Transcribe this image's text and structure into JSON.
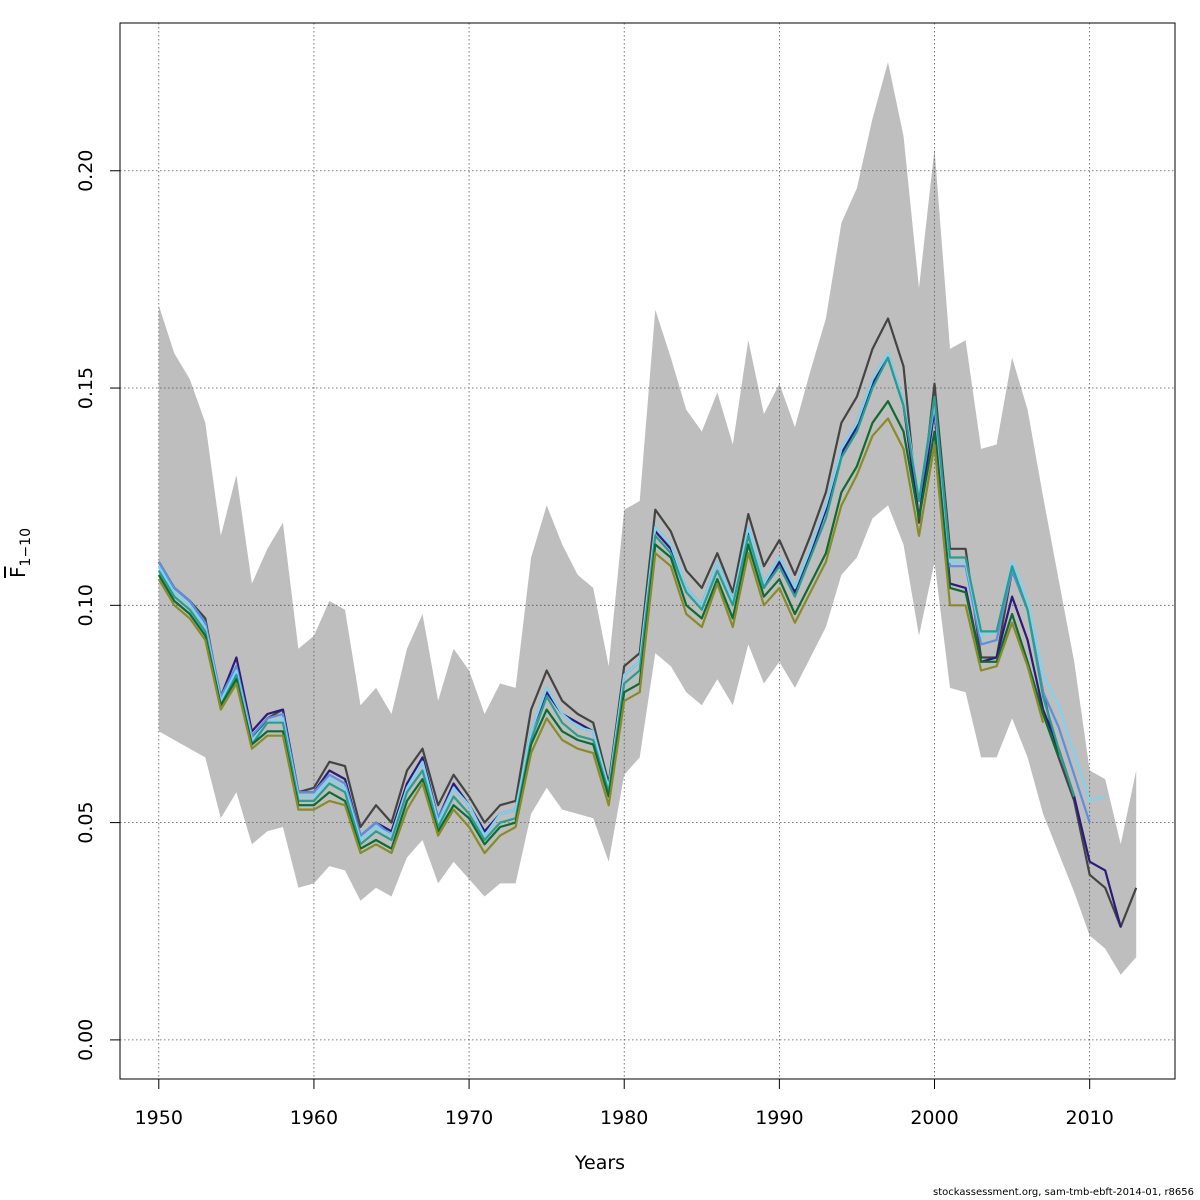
{
  "chart_data": {
    "type": "line",
    "xlabel": "Years",
    "ylabel_symbol": "F",
    "ylabel_subscript": "1−10",
    "xlim": [
      1947.5,
      2015.5
    ],
    "ylim": [
      -0.009,
      0.234
    ],
    "x_ticks": [
      1950,
      1960,
      1970,
      1980,
      1990,
      2000,
      2010
    ],
    "y_ticks": [
      0.0,
      0.05,
      0.1,
      0.15,
      0.2
    ],
    "y_tick_labels": [
      "0.00",
      "0.05",
      "0.10",
      "0.15",
      "0.20"
    ],
    "grid": true,
    "band": {
      "x": [
        1950,
        1951,
        1952,
        1953,
        1954,
        1955,
        1956,
        1957,
        1958,
        1959,
        1960,
        1961,
        1962,
        1963,
        1964,
        1965,
        1966,
        1967,
        1968,
        1969,
        1970,
        1971,
        1972,
        1973,
        1974,
        1975,
        1976,
        1977,
        1978,
        1979,
        1980,
        1981,
        1982,
        1983,
        1984,
        1985,
        1986,
        1987,
        1988,
        1989,
        1990,
        1991,
        1992,
        1993,
        1994,
        1995,
        1996,
        1997,
        1998,
        1999,
        2000,
        2001,
        2002,
        2003,
        2004,
        2005,
        2006,
        2007,
        2008,
        2009,
        2010,
        2011,
        2012,
        2013
      ],
      "upper": [
        0.169,
        0.158,
        0.152,
        0.142,
        0.116,
        0.13,
        0.105,
        0.113,
        0.119,
        0.09,
        0.093,
        0.101,
        0.099,
        0.077,
        0.081,
        0.075,
        0.09,
        0.098,
        0.078,
        0.09,
        0.085,
        0.075,
        0.082,
        0.081,
        0.111,
        0.123,
        0.114,
        0.107,
        0.104,
        0.086,
        0.122,
        0.124,
        0.168,
        0.157,
        0.145,
        0.14,
        0.149,
        0.137,
        0.161,
        0.144,
        0.151,
        0.141,
        0.154,
        0.166,
        0.188,
        0.196,
        0.212,
        0.225,
        0.208,
        0.173,
        0.205,
        0.159,
        0.161,
        0.136,
        0.137,
        0.157,
        0.145,
        0.125,
        0.106,
        0.087,
        0.062,
        0.06,
        0.045,
        0.062
      ],
      "lower": [
        0.071,
        0.069,
        0.067,
        0.065,
        0.051,
        0.057,
        0.045,
        0.048,
        0.049,
        0.035,
        0.036,
        0.04,
        0.039,
        0.032,
        0.035,
        0.033,
        0.042,
        0.046,
        0.036,
        0.041,
        0.037,
        0.033,
        0.036,
        0.036,
        0.052,
        0.058,
        0.053,
        0.052,
        0.051,
        0.041,
        0.061,
        0.065,
        0.089,
        0.086,
        0.08,
        0.077,
        0.083,
        0.077,
        0.091,
        0.082,
        0.087,
        0.081,
        0.088,
        0.095,
        0.107,
        0.111,
        0.12,
        0.123,
        0.114,
        0.093,
        0.11,
        0.081,
        0.08,
        0.065,
        0.065,
        0.074,
        0.065,
        0.052,
        0.043,
        0.034,
        0.024,
        0.021,
        0.015,
        0.019
      ]
    },
    "series": [
      {
        "color": "#444444",
        "x0": 1950,
        "values": [
          0.11,
          0.104,
          0.101,
          0.097,
          0.078,
          0.086,
          0.069,
          0.074,
          0.076,
          0.057,
          0.058,
          0.064,
          0.063,
          0.049,
          0.054,
          0.05,
          0.062,
          0.067,
          0.054,
          0.061,
          0.056,
          0.05,
          0.054,
          0.055,
          0.076,
          0.085,
          0.078,
          0.075,
          0.073,
          0.059,
          0.086,
          0.089,
          0.122,
          0.117,
          0.108,
          0.104,
          0.112,
          0.103,
          0.121,
          0.109,
          0.115,
          0.107,
          0.116,
          0.126,
          0.142,
          0.148,
          0.159,
          0.166,
          0.155,
          0.119,
          0.151,
          0.113,
          0.113,
          0.088,
          0.088,
          0.108,
          0.099,
          0.08,
          0.065,
          0.055,
          0.038,
          0.035,
          0.026,
          0.035
        ]
      },
      {
        "color": "#2d1a7a",
        "x0": 1950,
        "values": [
          0.11,
          0.104,
          0.101,
          0.096,
          0.079,
          0.088,
          0.071,
          0.075,
          0.076,
          0.057,
          0.057,
          0.062,
          0.06,
          0.047,
          0.05,
          0.048,
          0.059,
          0.065,
          0.051,
          0.059,
          0.054,
          0.048,
          0.052,
          0.053,
          0.071,
          0.08,
          0.075,
          0.073,
          0.071,
          0.058,
          0.084,
          0.087,
          0.117,
          0.113,
          0.104,
          0.1,
          0.11,
          0.101,
          0.117,
          0.104,
          0.11,
          0.103,
          0.112,
          0.122,
          0.135,
          0.141,
          0.151,
          0.157,
          0.146,
          0.12,
          0.145,
          0.105,
          0.104,
          0.087,
          0.088,
          0.102,
          0.092,
          0.076,
          0.067,
          0.056,
          0.041,
          0.039,
          0.026
        ]
      },
      {
        "color": "#5b8fe0",
        "x0": 1950,
        "values": [
          0.11,
          0.104,
          0.101,
          0.096,
          0.079,
          0.086,
          0.07,
          0.074,
          0.075,
          0.057,
          0.057,
          0.061,
          0.059,
          0.047,
          0.05,
          0.047,
          0.058,
          0.064,
          0.051,
          0.058,
          0.054,
          0.047,
          0.052,
          0.053,
          0.071,
          0.081,
          0.075,
          0.072,
          0.071,
          0.058,
          0.084,
          0.087,
          0.118,
          0.114,
          0.104,
          0.1,
          0.11,
          0.101,
          0.118,
          0.105,
          0.111,
          0.104,
          0.113,
          0.123,
          0.136,
          0.142,
          0.152,
          0.158,
          0.147,
          0.124,
          0.146,
          0.109,
          0.109,
          0.091,
          0.092,
          0.108,
          0.099,
          0.08,
          0.072,
          0.061,
          0.05
        ]
      },
      {
        "color": "#7fd3ee",
        "x0": 1950,
        "values": [
          0.109,
          0.103,
          0.1,
          0.095,
          0.078,
          0.085,
          0.069,
          0.073,
          0.074,
          0.056,
          0.056,
          0.06,
          0.058,
          0.046,
          0.049,
          0.047,
          0.058,
          0.064,
          0.05,
          0.058,
          0.054,
          0.047,
          0.052,
          0.053,
          0.071,
          0.081,
          0.075,
          0.072,
          0.071,
          0.058,
          0.084,
          0.087,
          0.118,
          0.114,
          0.104,
          0.1,
          0.11,
          0.101,
          0.118,
          0.105,
          0.111,
          0.104,
          0.113,
          0.123,
          0.136,
          0.142,
          0.152,
          0.158,
          0.147,
          0.125,
          0.147,
          0.11,
          0.11,
          0.093,
          0.094,
          0.11,
          0.101,
          0.084,
          0.077,
          0.066,
          0.055,
          0.056
        ]
      },
      {
        "color": "#2a9d8f",
        "x0": 1950,
        "values": [
          0.108,
          0.102,
          0.099,
          0.094,
          0.077,
          0.084,
          0.068,
          0.073,
          0.073,
          0.055,
          0.055,
          0.059,
          0.057,
          0.045,
          0.048,
          0.046,
          0.057,
          0.062,
          0.049,
          0.056,
          0.052,
          0.046,
          0.05,
          0.051,
          0.069,
          0.079,
          0.073,
          0.07,
          0.069,
          0.057,
          0.082,
          0.085,
          0.116,
          0.112,
          0.103,
          0.099,
          0.108,
          0.1,
          0.116,
          0.104,
          0.109,
          0.102,
          0.111,
          0.12,
          0.134,
          0.14,
          0.15,
          0.157,
          0.146,
          0.124,
          0.148,
          0.111,
          0.111,
          0.094,
          0.094,
          0.109,
          0.099,
          0.079,
          0.067,
          0.056
        ]
      },
      {
        "color": "#0f6b2f",
        "x0": 1950,
        "values": [
          0.107,
          0.101,
          0.098,
          0.093,
          0.077,
          0.083,
          0.068,
          0.071,
          0.071,
          0.054,
          0.054,
          0.057,
          0.055,
          0.044,
          0.046,
          0.044,
          0.055,
          0.06,
          0.048,
          0.054,
          0.051,
          0.045,
          0.049,
          0.05,
          0.068,
          0.076,
          0.071,
          0.069,
          0.068,
          0.056,
          0.08,
          0.082,
          0.114,
          0.111,
          0.1,
          0.097,
          0.106,
          0.097,
          0.114,
          0.102,
          0.106,
          0.098,
          0.105,
          0.112,
          0.126,
          0.132,
          0.142,
          0.147,
          0.14,
          0.12,
          0.14,
          0.104,
          0.103,
          0.087,
          0.087,
          0.098,
          0.087,
          0.075,
          0.065
        ]
      },
      {
        "color": "#8a8a2a",
        "x0": 1950,
        "values": [
          0.106,
          0.1,
          0.097,
          0.092,
          0.076,
          0.082,
          0.067,
          0.07,
          0.07,
          0.053,
          0.053,
          0.055,
          0.054,
          0.043,
          0.045,
          0.043,
          0.053,
          0.059,
          0.047,
          0.053,
          0.049,
          0.043,
          0.047,
          0.049,
          0.066,
          0.074,
          0.069,
          0.067,
          0.066,
          0.054,
          0.078,
          0.08,
          0.112,
          0.109,
          0.098,
          0.095,
          0.105,
          0.095,
          0.112,
          0.1,
          0.104,
          0.096,
          0.103,
          0.11,
          0.123,
          0.13,
          0.139,
          0.143,
          0.136,
          0.116,
          0.137,
          0.1,
          0.1,
          0.085,
          0.086,
          0.096,
          0.086,
          0.073
        ]
      }
    ]
  },
  "footer": "stockassessment.org, sam-tmb-ebft-2014-01, r8656"
}
